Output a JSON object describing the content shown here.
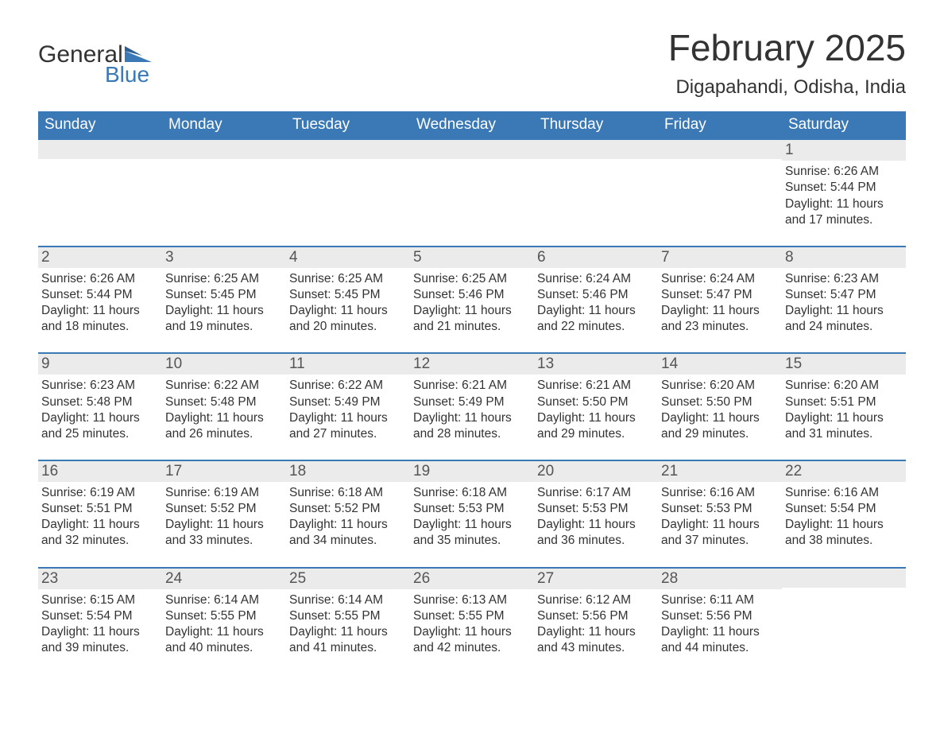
{
  "brand": {
    "name_part1": "General",
    "name_part2": "Blue",
    "text_color": "#333333",
    "accent_color": "#3a78b6"
  },
  "title": {
    "month_year": "February 2025",
    "location": "Digapahandi, Odisha, India",
    "title_fontsize": 46,
    "location_fontsize": 24
  },
  "calendar": {
    "type": "calendar-grid",
    "columns": 7,
    "header_bg": "#3a78b6",
    "header_text_color": "#ffffff",
    "daynum_bg": "#ebebeb",
    "daynum_border_top": "#3a78b6",
    "body_text_color": "#333333",
    "body_fontsize": 15.5,
    "dow": [
      "Sunday",
      "Monday",
      "Tuesday",
      "Wednesday",
      "Thursday",
      "Friday",
      "Saturday"
    ],
    "weeks": [
      [
        {
          "n": "",
          "sunrise": "",
          "sunset": "",
          "daylight": ""
        },
        {
          "n": "",
          "sunrise": "",
          "sunset": "",
          "daylight": ""
        },
        {
          "n": "",
          "sunrise": "",
          "sunset": "",
          "daylight": ""
        },
        {
          "n": "",
          "sunrise": "",
          "sunset": "",
          "daylight": ""
        },
        {
          "n": "",
          "sunrise": "",
          "sunset": "",
          "daylight": ""
        },
        {
          "n": "",
          "sunrise": "",
          "sunset": "",
          "daylight": ""
        },
        {
          "n": "1",
          "sunrise": "Sunrise: 6:26 AM",
          "sunset": "Sunset: 5:44 PM",
          "daylight": "Daylight: 11 hours and 17 minutes."
        }
      ],
      [
        {
          "n": "2",
          "sunrise": "Sunrise: 6:26 AM",
          "sunset": "Sunset: 5:44 PM",
          "daylight": "Daylight: 11 hours and 18 minutes."
        },
        {
          "n": "3",
          "sunrise": "Sunrise: 6:25 AM",
          "sunset": "Sunset: 5:45 PM",
          "daylight": "Daylight: 11 hours and 19 minutes."
        },
        {
          "n": "4",
          "sunrise": "Sunrise: 6:25 AM",
          "sunset": "Sunset: 5:45 PM",
          "daylight": "Daylight: 11 hours and 20 minutes."
        },
        {
          "n": "5",
          "sunrise": "Sunrise: 6:25 AM",
          "sunset": "Sunset: 5:46 PM",
          "daylight": "Daylight: 11 hours and 21 minutes."
        },
        {
          "n": "6",
          "sunrise": "Sunrise: 6:24 AM",
          "sunset": "Sunset: 5:46 PM",
          "daylight": "Daylight: 11 hours and 22 minutes."
        },
        {
          "n": "7",
          "sunrise": "Sunrise: 6:24 AM",
          "sunset": "Sunset: 5:47 PM",
          "daylight": "Daylight: 11 hours and 23 minutes."
        },
        {
          "n": "8",
          "sunrise": "Sunrise: 6:23 AM",
          "sunset": "Sunset: 5:47 PM",
          "daylight": "Daylight: 11 hours and 24 minutes."
        }
      ],
      [
        {
          "n": "9",
          "sunrise": "Sunrise: 6:23 AM",
          "sunset": "Sunset: 5:48 PM",
          "daylight": "Daylight: 11 hours and 25 minutes."
        },
        {
          "n": "10",
          "sunrise": "Sunrise: 6:22 AM",
          "sunset": "Sunset: 5:48 PM",
          "daylight": "Daylight: 11 hours and 26 minutes."
        },
        {
          "n": "11",
          "sunrise": "Sunrise: 6:22 AM",
          "sunset": "Sunset: 5:49 PM",
          "daylight": "Daylight: 11 hours and 27 minutes."
        },
        {
          "n": "12",
          "sunrise": "Sunrise: 6:21 AM",
          "sunset": "Sunset: 5:49 PM",
          "daylight": "Daylight: 11 hours and 28 minutes."
        },
        {
          "n": "13",
          "sunrise": "Sunrise: 6:21 AM",
          "sunset": "Sunset: 5:50 PM",
          "daylight": "Daylight: 11 hours and 29 minutes."
        },
        {
          "n": "14",
          "sunrise": "Sunrise: 6:20 AM",
          "sunset": "Sunset: 5:50 PM",
          "daylight": "Daylight: 11 hours and 29 minutes."
        },
        {
          "n": "15",
          "sunrise": "Sunrise: 6:20 AM",
          "sunset": "Sunset: 5:51 PM",
          "daylight": "Daylight: 11 hours and 31 minutes."
        }
      ],
      [
        {
          "n": "16",
          "sunrise": "Sunrise: 6:19 AM",
          "sunset": "Sunset: 5:51 PM",
          "daylight": "Daylight: 11 hours and 32 minutes."
        },
        {
          "n": "17",
          "sunrise": "Sunrise: 6:19 AM",
          "sunset": "Sunset: 5:52 PM",
          "daylight": "Daylight: 11 hours and 33 minutes."
        },
        {
          "n": "18",
          "sunrise": "Sunrise: 6:18 AM",
          "sunset": "Sunset: 5:52 PM",
          "daylight": "Daylight: 11 hours and 34 minutes."
        },
        {
          "n": "19",
          "sunrise": "Sunrise: 6:18 AM",
          "sunset": "Sunset: 5:53 PM",
          "daylight": "Daylight: 11 hours and 35 minutes."
        },
        {
          "n": "20",
          "sunrise": "Sunrise: 6:17 AM",
          "sunset": "Sunset: 5:53 PM",
          "daylight": "Daylight: 11 hours and 36 minutes."
        },
        {
          "n": "21",
          "sunrise": "Sunrise: 6:16 AM",
          "sunset": "Sunset: 5:53 PM",
          "daylight": "Daylight: 11 hours and 37 minutes."
        },
        {
          "n": "22",
          "sunrise": "Sunrise: 6:16 AM",
          "sunset": "Sunset: 5:54 PM",
          "daylight": "Daylight: 11 hours and 38 minutes."
        }
      ],
      [
        {
          "n": "23",
          "sunrise": "Sunrise: 6:15 AM",
          "sunset": "Sunset: 5:54 PM",
          "daylight": "Daylight: 11 hours and 39 minutes."
        },
        {
          "n": "24",
          "sunrise": "Sunrise: 6:14 AM",
          "sunset": "Sunset: 5:55 PM",
          "daylight": "Daylight: 11 hours and 40 minutes."
        },
        {
          "n": "25",
          "sunrise": "Sunrise: 6:14 AM",
          "sunset": "Sunset: 5:55 PM",
          "daylight": "Daylight: 11 hours and 41 minutes."
        },
        {
          "n": "26",
          "sunrise": "Sunrise: 6:13 AM",
          "sunset": "Sunset: 5:55 PM",
          "daylight": "Daylight: 11 hours and 42 minutes."
        },
        {
          "n": "27",
          "sunrise": "Sunrise: 6:12 AM",
          "sunset": "Sunset: 5:56 PM",
          "daylight": "Daylight: 11 hours and 43 minutes."
        },
        {
          "n": "28",
          "sunrise": "Sunrise: 6:11 AM",
          "sunset": "Sunset: 5:56 PM",
          "daylight": "Daylight: 11 hours and 44 minutes."
        },
        {
          "n": "",
          "sunrise": "",
          "sunset": "",
          "daylight": ""
        }
      ]
    ]
  }
}
